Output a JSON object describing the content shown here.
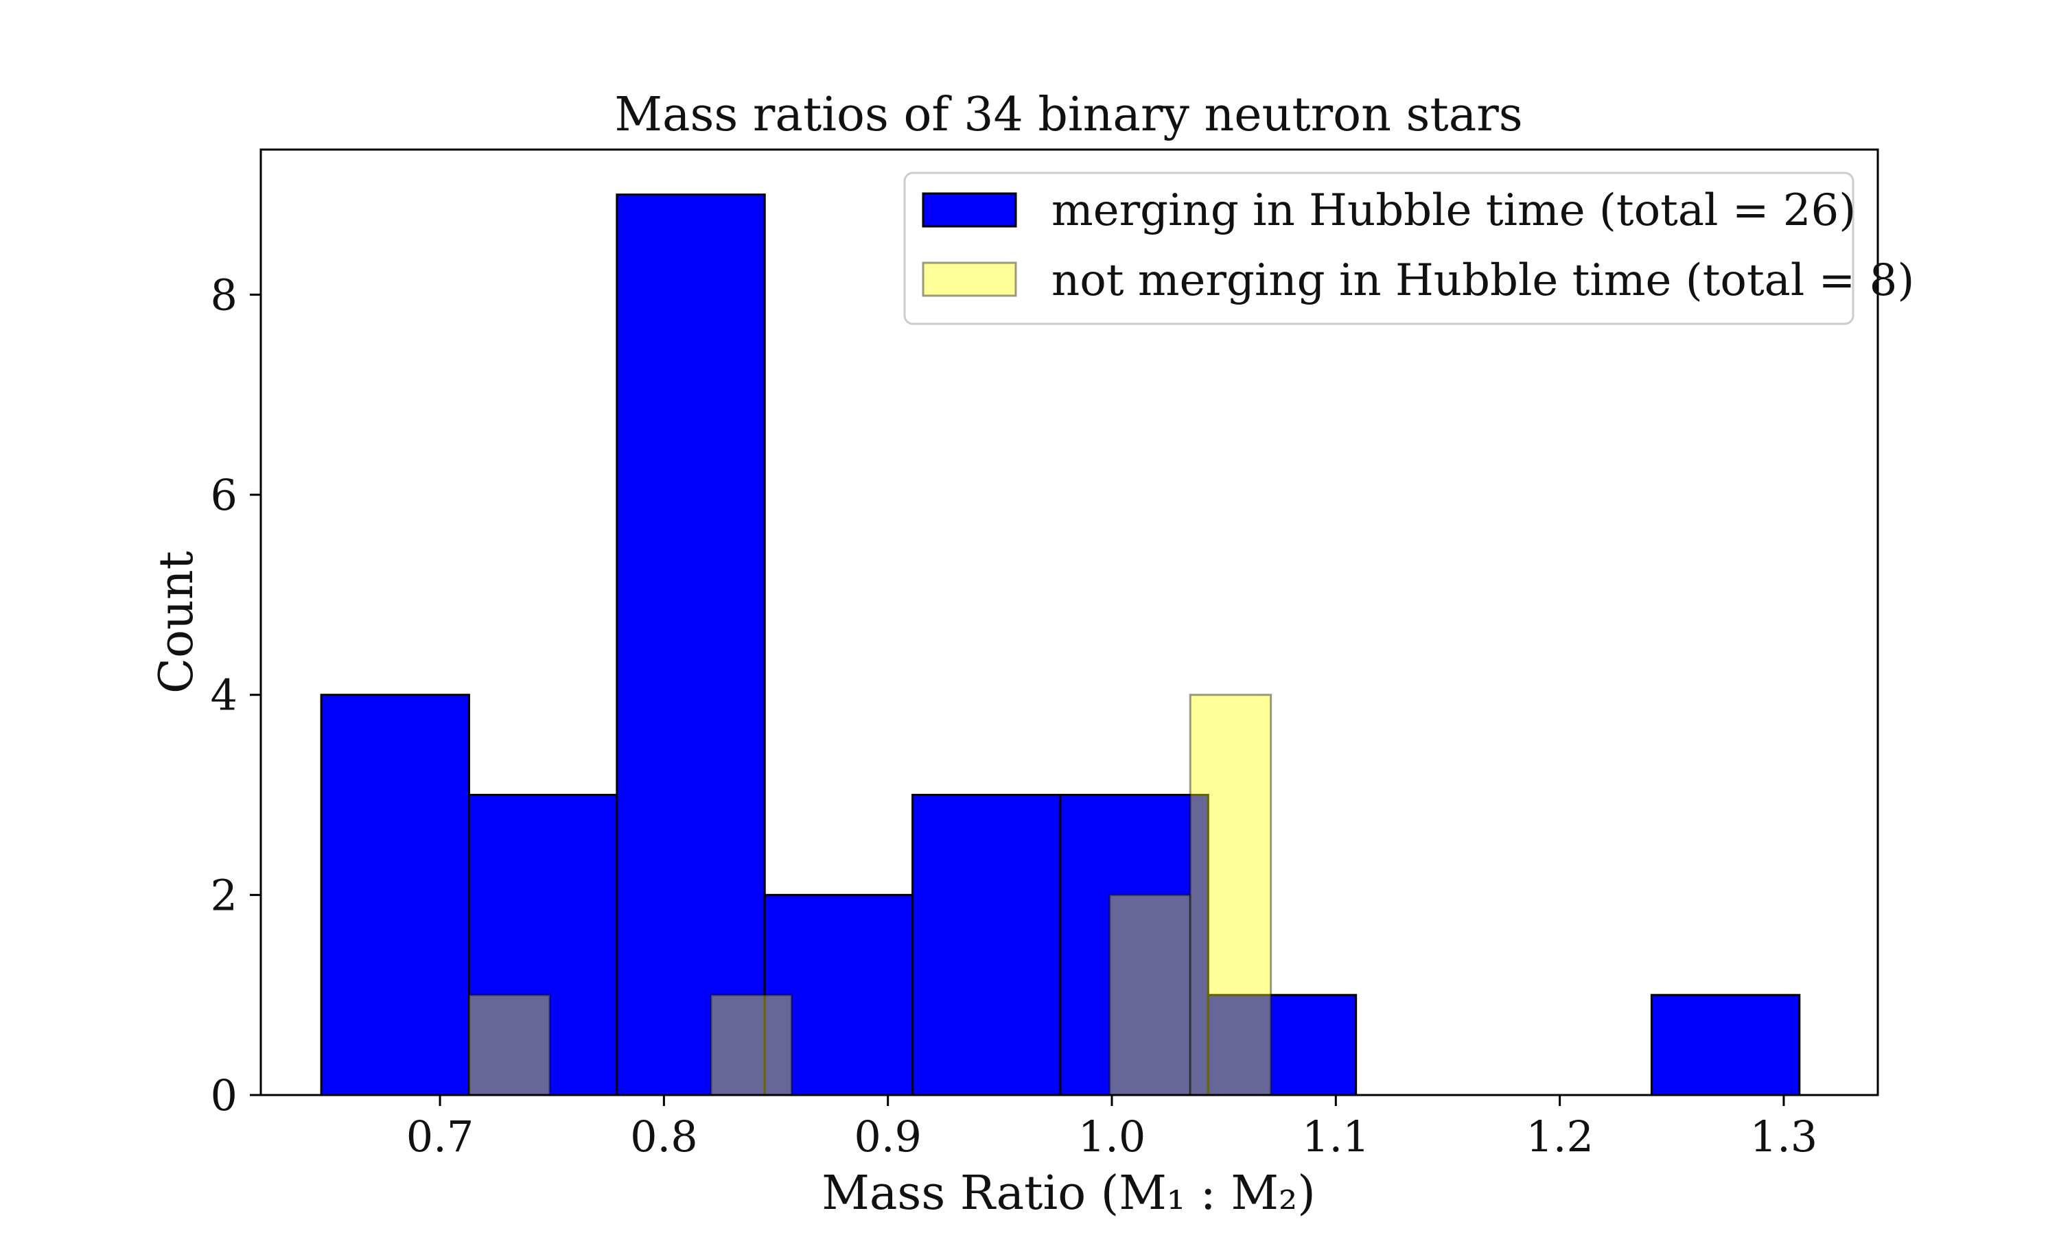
{
  "chart_data": {
    "type": "bar",
    "title": "Mass ratios of 34 binary neutron stars",
    "xlabel": "Mass Ratio (M₁ : M₂)",
    "ylabel": "Count",
    "xlim": [
      0.62,
      1.342
    ],
    "ylim": [
      0,
      9.45
    ],
    "xticks": [
      0.7,
      0.8,
      0.9,
      1.0,
      1.1,
      1.2,
      1.3
    ],
    "xtick_labels": [
      "0.7",
      "0.8",
      "0.9",
      "1.0",
      "1.1",
      "1.2",
      "1.3"
    ],
    "yticks": [
      0,
      2,
      4,
      6,
      8
    ],
    "ytick_labels": [
      "0",
      "2",
      "4",
      "6",
      "8"
    ],
    "grid": false,
    "legend_position": "top-right",
    "series": [
      {
        "name": "merging in Hubble time (total = 26)",
        "color": "#0000ff",
        "edge_color": "#000000",
        "alpha": 1.0,
        "bins": [
          {
            "x0": 0.647,
            "x1": 0.713,
            "count": 4
          },
          {
            "x0": 0.713,
            "x1": 0.779,
            "count": 3
          },
          {
            "x0": 0.779,
            "x1": 0.845,
            "count": 9
          },
          {
            "x0": 0.845,
            "x1": 0.911,
            "count": 2
          },
          {
            "x0": 0.911,
            "x1": 0.977,
            "count": 3
          },
          {
            "x0": 0.977,
            "x1": 1.043,
            "count": 3
          },
          {
            "x0": 1.043,
            "x1": 1.109,
            "count": 1
          },
          {
            "x0": 1.109,
            "x1": 1.175,
            "count": 0
          },
          {
            "x0": 1.175,
            "x1": 1.241,
            "count": 0
          },
          {
            "x0": 1.241,
            "x1": 1.307,
            "count": 1
          }
        ]
      },
      {
        "name": "not merging in Hubble time (total = 8)",
        "color": "#ffff00",
        "edge_color": "#000000",
        "alpha": 0.4,
        "bins": [
          {
            "x0": 0.713,
            "x1": 0.749,
            "count": 1
          },
          {
            "x0": 0.821,
            "x1": 0.857,
            "count": 1
          },
          {
            "x0": 0.999,
            "x1": 1.035,
            "count": 2
          },
          {
            "x0": 1.035,
            "x1": 1.071,
            "count": 4
          }
        ]
      }
    ]
  }
}
